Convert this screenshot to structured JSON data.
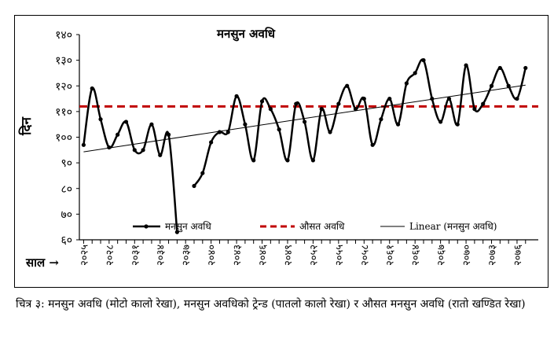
{
  "caption": "चित्र ३: मनसुन अवधि (मोटो कालो रेखा), मनसुन अवधिको ट्रेन्ड (पातलो कालो रेखा) र औसत मनसुन अवधि (रातो खण्डित रेखा)",
  "colors": {
    "average_line": "#c00000",
    "series": "#000000"
  },
  "chart_data": {
    "type": "line",
    "title": "मनसुन अवधि",
    "ylabel": "दिन",
    "xlabel": "साल →",
    "ylim": [
      60,
      140
    ],
    "yticks": [
      "६०",
      "७०",
      "८०",
      "९०",
      "१००",
      "११०",
      "१२०",
      "१३०",
      "१४०"
    ],
    "ytick_values": [
      60,
      70,
      80,
      90,
      100,
      110,
      120,
      130,
      140
    ],
    "x_tick_labels": [
      "२०२५",
      "२०२८",
      "२०३१",
      "२०३४",
      "२०३७",
      "२०४०",
      "२०४३",
      "२०४६",
      "२०४९",
      "२०५२",
      "२०५५",
      "२०५८",
      "२०६१",
      "२०६४",
      "२०६७",
      "२०७०",
      "२०७३",
      "२०७६"
    ],
    "x_tick_values": [
      2025,
      2028,
      2031,
      2034,
      2037,
      2040,
      2043,
      2046,
      2049,
      2052,
      2055,
      2058,
      2061,
      2064,
      2067,
      2070,
      2073,
      2076
    ],
    "xlim": [
      2024.5,
      2078.5
    ],
    "series": [
      {
        "name": "मनसुन अवधि",
        "x": [
          2025,
          2026,
          2027,
          2028,
          2029,
          2030,
          2031,
          2032,
          2033,
          2034,
          2035,
          2036,
          2037,
          2038,
          2039,
          2040,
          2041,
          2042,
          2043,
          2044,
          2045,
          2046,
          2047,
          2048,
          2049,
          2050,
          2051,
          2052,
          2053,
          2054,
          2055,
          2056,
          2057,
          2058,
          2059,
          2060,
          2061,
          2062,
          2063,
          2064,
          2065,
          2066,
          2067,
          2068,
          2069,
          2070,
          2071,
          2072,
          2073,
          2074,
          2075,
          2076,
          2077
        ],
        "y": [
          97,
          119,
          107,
          96,
          101,
          106,
          95,
          95,
          105,
          93,
          101,
          63,
          null,
          81,
          86,
          98,
          102,
          102,
          116,
          105,
          91,
          114,
          111,
          103,
          91,
          113,
          106,
          91,
          111,
          102,
          113,
          120,
          111,
          115,
          97,
          107,
          115,
          105,
          121,
          125,
          130,
          115,
          106,
          115,
          105,
          128,
          111,
          113,
          120,
          127,
          120,
          115,
          127
        ]
      },
      {
        "name": "औसत अवधि",
        "y": [
          112
        ]
      },
      {
        "name": "Linear (मनसुन अवधि)",
        "x": [
          2025,
          2077
        ],
        "y": [
          94.3,
          120.3
        ]
      }
    ],
    "legend_position": "bottom",
    "grid": false
  }
}
